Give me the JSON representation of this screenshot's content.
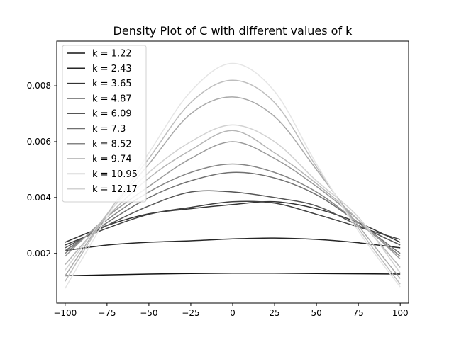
{
  "chart_data": {
    "type": "line",
    "title": "Density Plot of C with different values of k",
    "xlabel": "",
    "ylabel": "",
    "xlim": [
      -105,
      105
    ],
    "ylim": [
      0.00022,
      0.0096
    ],
    "xticks": [
      -100,
      -75,
      -50,
      -25,
      0,
      25,
      50,
      75,
      100
    ],
    "xtick_labels": [
      "−100",
      "−75",
      "−50",
      "−25",
      "0",
      "25",
      "50",
      "75",
      "100"
    ],
    "yticks": [
      0.002,
      0.004,
      0.006,
      0.008
    ],
    "ytick_labels": [
      "0.002",
      "0.004",
      "0.006",
      "0.008"
    ],
    "grid": false,
    "legend_position": "top-left",
    "x": [
      -100,
      -75,
      -50,
      -25,
      0,
      25,
      50,
      75,
      100
    ],
    "series": [
      {
        "name": "k = 1.22",
        "color": "#141414",
        "values": [
          0.0012,
          0.00123,
          0.00126,
          0.00128,
          0.00129,
          0.00129,
          0.00128,
          0.00127,
          0.00126
        ]
      },
      {
        "name": "k = 2.43",
        "color": "#262626",
        "values": [
          0.0021,
          0.0023,
          0.0024,
          0.00245,
          0.00252,
          0.00255,
          0.0025,
          0.00238,
          0.0022
        ]
      },
      {
        "name": "k = 3.65",
        "color": "#333333",
        "values": [
          0.0024,
          0.003,
          0.00342,
          0.0036,
          0.00375,
          0.00385,
          0.0036,
          0.0031,
          0.0024
        ]
      },
      {
        "name": "k = 4.87",
        "color": "#404040",
        "values": [
          0.0023,
          0.0029,
          0.0034,
          0.00365,
          0.00385,
          0.0038,
          0.0034,
          0.00295,
          0.0025
        ]
      },
      {
        "name": "k = 6.09",
        "color": "#555555",
        "values": [
          0.0022,
          0.003,
          0.0037,
          0.0042,
          0.0042,
          0.004,
          0.0037,
          0.003,
          0.0023
        ]
      },
      {
        "name": "k = 7.3",
        "color": "#707070",
        "values": [
          0.0021,
          0.0031,
          0.004,
          0.0046,
          0.0049,
          0.0047,
          0.0041,
          0.0031,
          0.002
        ]
      },
      {
        "name": "k = 8.52",
        "color": "#858585",
        "values": [
          0.002,
          0.0032,
          0.0042,
          0.0049,
          0.0052,
          0.0049,
          0.0042,
          0.0031,
          0.0019
        ]
      },
      {
        "name": "k = 9.74",
        "color": "#9a9a9a",
        "values": [
          0.0019,
          0.0033,
          0.0044,
          0.0054,
          0.006,
          0.0054,
          0.0044,
          0.0032,
          0.0018
        ]
      },
      {
        "name": "k = 10.95",
        "color": "#b5b5b5",
        "values": [
          0.0016,
          0.0033,
          0.0047,
          0.0057,
          0.0064,
          0.0056,
          0.0045,
          0.0032,
          0.0015
        ]
      },
      {
        "name": "k = 12.17",
        "color": "#d2d2d2",
        "values": [
          0.0014,
          0.0034,
          0.0049,
          0.006,
          0.0066,
          0.006,
          0.0046,
          0.0033,
          0.0013
        ]
      },
      {
        "name": "",
        "color": "#a9a9a9",
        "values": [
          0.0012,
          0.0034,
          0.0052,
          0.007,
          0.0076,
          0.0069,
          0.005,
          0.003,
          0.0011
        ]
      },
      {
        "name": "",
        "color": "#bdbdbd",
        "values": [
          0.001,
          0.0034,
          0.0054,
          0.0074,
          0.0082,
          0.0074,
          0.0051,
          0.0029,
          0.0009
        ]
      },
      {
        "name": "",
        "color": "#e5e5e5",
        "values": [
          0.00075,
          0.0033,
          0.0056,
          0.0078,
          0.0088,
          0.0078,
          0.0052,
          0.0028,
          0.0008
        ]
      }
    ]
  }
}
